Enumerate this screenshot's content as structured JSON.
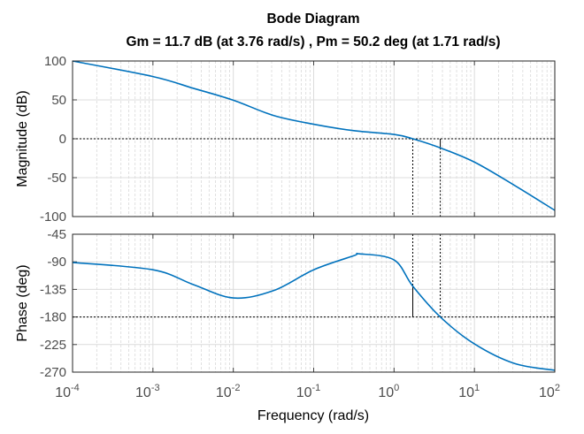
{
  "chart_data": [
    {
      "type": "line",
      "title": "Bode Diagram",
      "subtitle": "Gm = 11.7 dB (at 3.76 rad/s) ,  Pm = 50.2 deg (at 1.71 rad/s)",
      "xlabel": "Frequency  (rad/s)",
      "ylabel": "Magnitude (dB)",
      "xscale": "log",
      "xlim": [
        0.0001,
        100
      ],
      "ylim": [
        -100,
        100
      ],
      "yticks": [
        "100",
        "50",
        "0",
        "-50",
        "-100"
      ],
      "ytick_values": [
        100,
        50,
        0,
        -50,
        -100
      ],
      "grid": true,
      "reference_line": 0,
      "series": [
        {
          "name": "Magnitude",
          "color": "#0072BD",
          "log10_w": [
            -4,
            -3,
            -2.5,
            -2,
            -1.5,
            -1,
            -0.5,
            0,
            0.233,
            0.575,
            1,
            1.5,
            2
          ],
          "values": [
            100,
            80,
            65,
            49.6,
            30,
            18.7,
            10.4,
            5.6,
            0,
            -11.7,
            -30,
            -60,
            -92
          ]
        }
      ]
    },
    {
      "type": "line",
      "xlabel": "Frequency  (rad/s)",
      "ylabel": "Phase (deg)",
      "xscale": "log",
      "xlim": [
        0.0001,
        100
      ],
      "ylim": [
        -270,
        -45
      ],
      "yticks": [
        "-45",
        "-90",
        "-135",
        "-180",
        "-225",
        "-270"
      ],
      "ytick_values": [
        -45,
        -90,
        -135,
        -180,
        -225,
        -270
      ],
      "xticks": [
        {
          "base": "10",
          "exp": "-4"
        },
        {
          "base": "10",
          "exp": "-3"
        },
        {
          "base": "10",
          "exp": "-2"
        },
        {
          "base": "10",
          "exp": "-1"
        },
        {
          "base": "10",
          "exp": "0"
        },
        {
          "base": "10",
          "exp": "1"
        },
        {
          "base": "10",
          "exp": "2"
        }
      ],
      "grid": true,
      "reference_line": -180,
      "series": [
        {
          "name": "Phase",
          "color": "#0072BD",
          "log10_w": [
            -4,
            -3,
            -2.5,
            -2,
            -1.5,
            -1,
            -0.5,
            -0.43,
            0,
            0.233,
            0.575,
            1,
            1.5,
            2
          ],
          "values": [
            -91,
            -103,
            -127,
            -149,
            -137,
            -103,
            -80,
            -77,
            -87,
            -129.8,
            -180,
            -224,
            -256,
            -267
          ]
        }
      ]
    }
  ],
  "margins": {
    "gm_db": 11.7,
    "gm_freq": 3.76,
    "pm_deg": 50.2,
    "pm_freq": 1.71
  }
}
